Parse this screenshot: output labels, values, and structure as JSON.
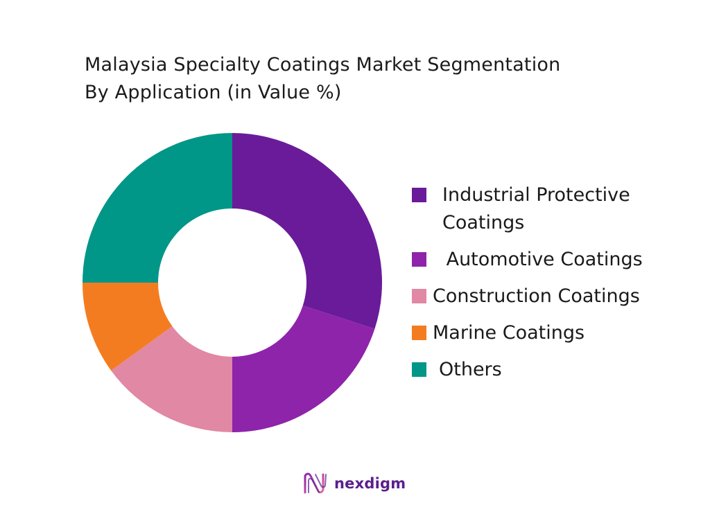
{
  "chart_data": {
    "type": "pie",
    "title_lines": [
      "Malaysia Specialty Coatings Market Segmentation",
      "By Application (in Value %)"
    ],
    "categories": [
      "Industrial Protective Coatings",
      " Automotive Coatings",
      "Construction Coatings",
      "Marine Coatings",
      "Others"
    ],
    "values": [
      30,
      20,
      15,
      10,
      25
    ],
    "colors": [
      "#6a1b9a",
      "#8e24aa",
      "#e088a4",
      "#f47c20",
      "#009688"
    ],
    "start_angle_deg": 0,
    "direction": "clockwise",
    "donut": true,
    "legend_position": "right"
  },
  "brand": {
    "name": "nexdigm",
    "logo_icon": "nexdigm-wave-logo",
    "color": "#5a1f8c"
  }
}
